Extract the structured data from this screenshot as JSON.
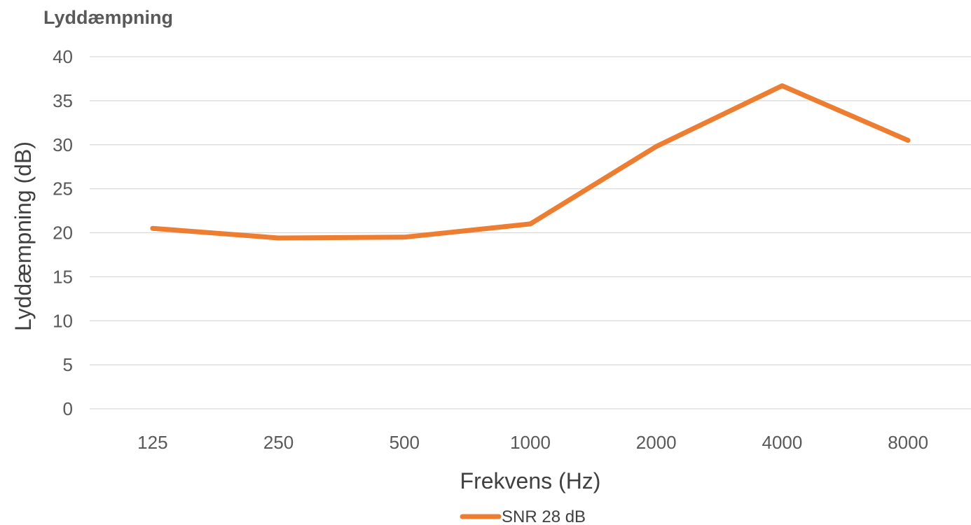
{
  "chart_data": {
    "type": "line",
    "title": "Lyddæmpning",
    "xlabel": "Frekvens (Hz)",
    "ylabel": "Lyddæmpning (dB)",
    "categories": [
      "125",
      "250",
      "500",
      "1000",
      "2000",
      "4000",
      "8000"
    ],
    "series": [
      {
        "name": "SNR 28 dB",
        "values": [
          20.5,
          19.4,
          19.5,
          21.0,
          29.8,
          36.7,
          30.5
        ],
        "color": "#ED7D31"
      }
    ],
    "ylim": [
      0,
      40
    ],
    "yticks": [
      "0",
      "5",
      "10",
      "15",
      "20",
      "25",
      "30",
      "35",
      "40"
    ],
    "grid": true,
    "legend_position": "bottom"
  }
}
